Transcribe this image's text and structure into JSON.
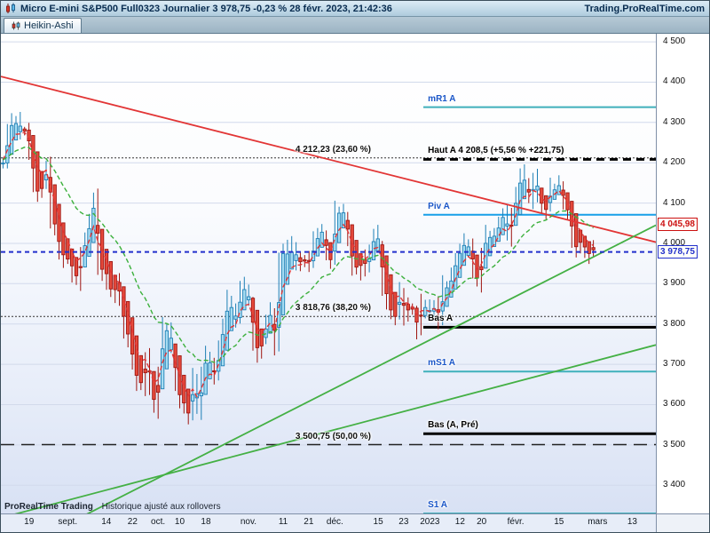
{
  "titlebar": {
    "title": "Micro E-mini S&P500 Full0323 Journalier 3 978,75 -0,23 % 28 févr. 2023, 21:42:36",
    "brand": "Trading.ProRealTime.com"
  },
  "tabbar": {
    "active_tab": "Heikin-Ashi"
  },
  "footer": {
    "attribution_bold": "ProRealTime Trading",
    "attribution_text": "Historique ajusté aux rollovers"
  },
  "chart_data": {
    "type": "candlestick",
    "style": "heikin-ashi",
    "instrument": "Micro E-mini S&P500 Full0323",
    "timeframe": "Journalier",
    "last_price": 3978.75,
    "change_pct": "-0,23 %",
    "timestamp": "28 févr. 2023, 21:42:36",
    "ylim": [
      3330,
      4520
    ],
    "total_slots": 152,
    "closes": [
      4207,
      4280,
      4297,
      4305,
      4274,
      4283,
      4228,
      4138,
      4129,
      4141,
      4199,
      4058,
      4031,
      3986,
      3955,
      3967,
      3924,
      3908,
      3980,
      4006,
      4067,
      4110,
      3933,
      3946,
      3901,
      3873,
      3900,
      3856,
      3790,
      3758,
      3693,
      3655,
      3647,
      3719,
      3640,
      3586,
      3678,
      3791,
      3783,
      3744,
      3640,
      3612,
      3589,
      3577,
      3670,
      3583,
      3678,
      3720,
      3695,
      3666,
      3753,
      3797,
      3859,
      3830,
      3807,
      3901,
      3872,
      3856,
      3760,
      3720,
      3771,
      3807,
      3828,
      3748,
      3956,
      3993,
      3957,
      3992,
      3959,
      3947,
      3965,
      3950,
      4004,
      4027,
      4026,
      3964,
      3958,
      4080,
      4077,
      4072,
      3999,
      3941,
      3934,
      3964,
      3934,
      3991,
      4020,
      3995,
      3896,
      3852,
      3818,
      3822,
      3878,
      3822,
      3845,
      3829,
      3783,
      3849,
      3840,
      3824,
      3853,
      3808,
      3895,
      3892,
      3919,
      3970,
      3983,
      3999,
      3991,
      3929,
      3899,
      3973,
      4020,
      4017,
      4016,
      4060,
      4071,
      4018,
      4077,
      4119,
      4180,
      4136,
      4111,
      4164,
      4118,
      4081,
      4090,
      4137,
      4136,
      4148,
      4090,
      4079,
      4000,
      3991,
      4012,
      3970,
      3982,
      3978.75
    ],
    "y_ticks": [
      {
        "label": "4 500",
        "value": 4500
      },
      {
        "label": "4 400",
        "value": 4400
      },
      {
        "label": "4 300",
        "value": 4300
      },
      {
        "label": "4 200",
        "value": 4200
      },
      {
        "label": "4 100",
        "value": 4100
      },
      {
        "label": "4 000",
        "value": 4000
      },
      {
        "label": "3 900",
        "value": 3900
      },
      {
        "label": "3 800",
        "value": 3800
      },
      {
        "label": "3 700",
        "value": 3700
      },
      {
        "label": "3 600",
        "value": 3600
      },
      {
        "label": "3 500",
        "value": 3500
      },
      {
        "label": "3 400",
        "value": 3400
      }
    ],
    "x_ticks": [
      {
        "label": "19",
        "pos": 0.043
      },
      {
        "label": "sept.",
        "pos": 0.102
      },
      {
        "label": "14",
        "pos": 0.161
      },
      {
        "label": "22",
        "pos": 0.201
      },
      {
        "label": "oct.",
        "pos": 0.24
      },
      {
        "label": "10",
        "pos": 0.273
      },
      {
        "label": "18",
        "pos": 0.313
      },
      {
        "label": "nov.",
        "pos": 0.378
      },
      {
        "label": "11",
        "pos": 0.431
      },
      {
        "label": "21",
        "pos": 0.47
      },
      {
        "label": "déc.",
        "pos": 0.51
      },
      {
        "label": "15",
        "pos": 0.576
      },
      {
        "label": "23",
        "pos": 0.615
      },
      {
        "label": "2023",
        "pos": 0.655
      },
      {
        "label": "12",
        "pos": 0.701
      },
      {
        "label": "20",
        "pos": 0.734
      },
      {
        "label": "févr.",
        "pos": 0.786
      },
      {
        "label": "15",
        "pos": 0.852
      },
      {
        "label": "mars",
        "pos": 0.911
      },
      {
        "label": "13",
        "pos": 0.964
      }
    ],
    "price_markers": [
      {
        "label": "4 045,98",
        "value": 4045.98,
        "color": "#cc1111"
      },
      {
        "label": "3 978,75",
        "value": 3978.75,
        "color": "#2230cc"
      }
    ],
    "levels": [
      {
        "name": "mr1",
        "label": "mR1 A",
        "value": 4338,
        "style": "solid",
        "width": 2,
        "color": "#3fb0bb",
        "label_color": "#1a56c8",
        "from": 0.645,
        "label_x": 0.652,
        "label_anchor": "left"
      },
      {
        "name": "fib-236",
        "label": "4 212,23 (23,60 %)",
        "value": 4212.23,
        "style": "dotted",
        "width": 1,
        "color": "#333333",
        "label_color": "#111111",
        "from": 0,
        "label_x": 0.565,
        "label_anchor": "right"
      },
      {
        "name": "haut-a",
        "label": "Haut A 4 208,5 (+5,56 % +221,75)",
        "value": 4208.5,
        "style": "dashed-thick",
        "width": 3,
        "color": "#000000",
        "label_color": "#000000",
        "from": 0.645,
        "label_x": 0.652,
        "label_anchor": "left"
      },
      {
        "name": "piv-a",
        "label": "Piv A",
        "value": 4071,
        "style": "solid",
        "width": 2,
        "color": "#18a0e8",
        "label_color": "#1a56c8",
        "from": 0.645,
        "label_x": 0.652,
        "label_anchor": "left"
      },
      {
        "name": "fib-382",
        "label": "3 818,76 (38,20 %)",
        "value": 3818.76,
        "style": "dotted",
        "width": 1,
        "color": "#333333",
        "label_color": "#111111",
        "from": 0,
        "label_x": 0.565,
        "label_anchor": "right"
      },
      {
        "name": "bas-a",
        "label": "Bas A",
        "value": 3792,
        "style": "solid",
        "width": 3,
        "color": "#000000",
        "label_color": "#000000",
        "from": 0.645,
        "label_x": 0.652,
        "label_anchor": "left"
      },
      {
        "name": "ms1",
        "label": "mS1 A",
        "value": 3682,
        "style": "solid",
        "width": 2,
        "color": "#3fb0bb",
        "label_color": "#1a56c8",
        "from": 0.645,
        "label_x": 0.652,
        "label_anchor": "left"
      },
      {
        "name": "bas-a-pre",
        "label": "Bas (A, Pré)",
        "value": 3528,
        "style": "solid",
        "width": 3,
        "color": "#000000",
        "label_color": "#000000",
        "from": 0.645,
        "label_x": 0.652,
        "label_anchor": "left"
      },
      {
        "name": "fib-50",
        "label": "3 500,75 (50,00 %)",
        "value": 3500.75,
        "style": "longdash",
        "width": 1.5,
        "color": "#222222",
        "label_color": "#111111",
        "from": 0,
        "label_x": 0.565,
        "label_anchor": "right"
      },
      {
        "name": "s1",
        "label": "S1 A",
        "value": 3330,
        "style": "solid",
        "width": 2,
        "color": "#3fb0bb",
        "label_color": "#1a56c8",
        "from": 0.645,
        "label_x": 0.652,
        "label_anchor": "left"
      },
      {
        "name": "last-price",
        "label": "",
        "value": 3978.75,
        "style": "dashed",
        "width": 2,
        "color": "#2230cc",
        "from": 0,
        "top": true
      }
    ],
    "trendlines": [
      {
        "name": "resistance-descending",
        "color": "#e23535",
        "width": 1.8,
        "x1": 0,
        "y1": 4414,
        "x2": 1,
        "y2": 4003
      },
      {
        "name": "support-ascending-main",
        "color": "#44b044",
        "width": 1.8,
        "x1": 0.075,
        "y1": 3282,
        "x2": 1,
        "y2": 4045
      },
      {
        "name": "support-ascending-secondary",
        "color": "#44b044",
        "width": 1.8,
        "x1": 0,
        "y1": 3319,
        "x2": 1,
        "y2": 3748
      }
    ],
    "moving_averages": [
      {
        "name": "fast",
        "period": 5,
        "color": "#e23535"
      },
      {
        "name": "slow",
        "period": 20,
        "color": "#3cb03c"
      }
    ],
    "colors": {
      "up_fill": "#a6dcf2",
      "up_stroke": "#1d7fb5",
      "down_fill": "#e64a3c",
      "down_stroke": "#9e1510",
      "grid": "#d2daeb"
    }
  }
}
